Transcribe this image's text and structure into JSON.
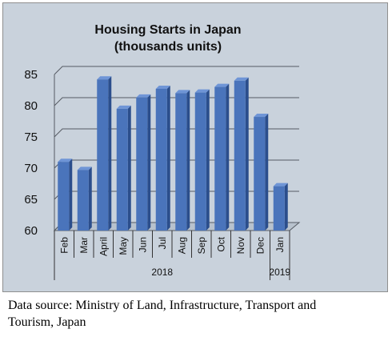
{
  "chart_data": {
    "type": "bar",
    "title": "Housing Starts in Japan",
    "subtitle": "(thousands units)",
    "categories": [
      "Feb",
      "Mar",
      "April",
      "May",
      "Jun",
      "Jul",
      "Aug",
      "Sep",
      "Oct",
      "Nov",
      "Dec",
      "Jan"
    ],
    "year_groups": [
      {
        "label": "2018",
        "categories": [
          "Feb",
          "Mar",
          "April",
          "May",
          "Jun",
          "Jul",
          "Aug",
          "Sep",
          "Oct",
          "Nov",
          "Dec"
        ]
      },
      {
        "label": "2019",
        "categories": [
          "Jan"
        ]
      }
    ],
    "series": [
      {
        "values": [
          71.0,
          69.7,
          84.2,
          79.5,
          81.3,
          82.7,
          82.0,
          82.1,
          83.0,
          84.0,
          78.2,
          67.1
        ]
      }
    ],
    "ylim": [
      60,
      85
    ],
    "yticks": [
      "60",
      "65",
      "70",
      "75",
      "80",
      "85"
    ],
    "grid": true,
    "xlabel": "",
    "ylabel": "",
    "colors": {
      "bar_front": "#4a74bb",
      "bar_side": "#2b4e8c",
      "bar_top": "#6f95d6",
      "plot_bg": "#c9d2dc",
      "grid": "#555b63"
    }
  },
  "caption": {
    "line1": "Data source: Ministry of Land, Infrastructure, Transport and",
    "line2": "Tourism, Japan"
  }
}
